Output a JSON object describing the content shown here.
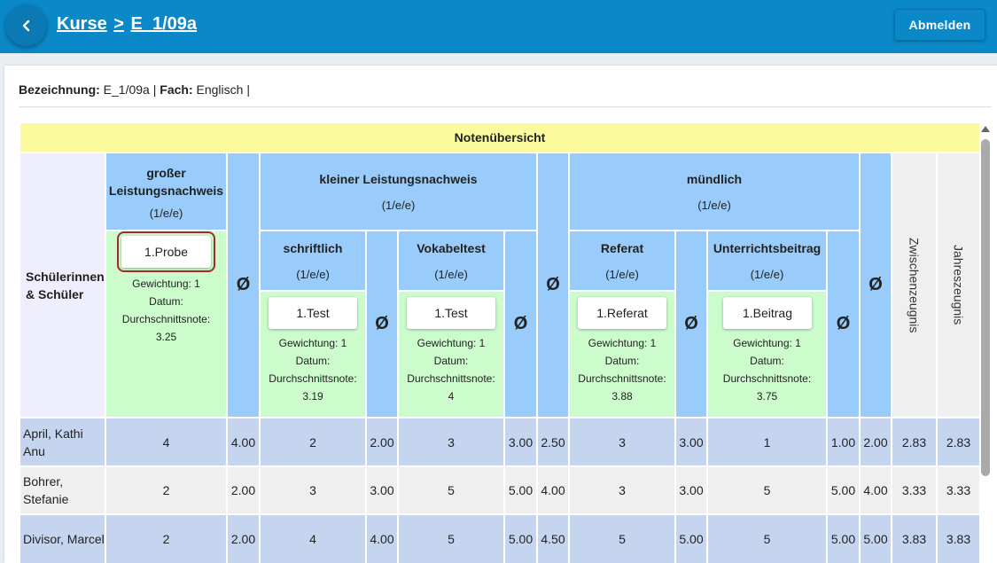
{
  "header": {
    "crumb_root": "Kurse",
    "crumb_sep": ">",
    "crumb_course": "E_1/09a",
    "logout_label": "Abmelden",
    "bg_color": "#0a88c8"
  },
  "info": {
    "bezeichnung_label": "Bezeichnung:",
    "bezeichnung_value": "E_1/09a",
    "fach_label": "Fach:",
    "fach_value": "Englisch"
  },
  "table": {
    "title": "Notenübersicht",
    "students_header": "Schülerinnen & Schüler",
    "avg_symbol": "Ø",
    "weight_pattern": "(1/e/e)",
    "groups": {
      "gross": "großer Leistungsnachweis",
      "klein": "kleiner Leistungsnachweis",
      "muendlich": "mündlich"
    },
    "subgroups": {
      "schriftlich": "schriftlich",
      "vokabeltest": "Vokabeltest",
      "referat": "Referat",
      "unterricht": "Unterrichtsbeitrag"
    },
    "zwischen": "Zwischenzeugnis",
    "jahres": "Jahreszeugnis",
    "exams": {
      "probe": {
        "label": "1.Probe",
        "weight": "Gewichtung: 1",
        "date": "Datum:",
        "avg_label": "Durchschnittsnote:",
        "avg": "3.25"
      },
      "test1": {
        "label": "1.Test",
        "weight": "Gewichtung: 1",
        "date": "Datum:",
        "avg_label": "Durchschnittsnote:",
        "avg": "3.19"
      },
      "test2": {
        "label": "1.Test",
        "weight": "Gewichtung: 1",
        "date": "Datum:",
        "avg_label": "Durchschnittsnote:",
        "avg": "4"
      },
      "referat": {
        "label": "1.Referat",
        "weight": "Gewichtung: 1",
        "date": "Datum:",
        "avg_label": "Durchschnittsnote:",
        "avg": "3.88"
      },
      "beitrag": {
        "label": "1.Beitrag",
        "weight": "Gewichtung: 1",
        "date": "Datum:",
        "avg_label": "Durchschnittsnote:",
        "avg": "3.75"
      }
    },
    "rows": [
      {
        "name": "April, Kathi Anu",
        "probe": "4",
        "avg_gross": "4.00",
        "schrift": "2",
        "avg_schrift": "2.00",
        "vokabel": "3",
        "avg_vokabel": "3.00",
        "avg_klein": "2.50",
        "referat": "3",
        "avg_referat": "3.00",
        "beitrag": "1",
        "avg_beitrag": "1.00",
        "avg_muendlich": "2.00",
        "zwischen": "2.83",
        "jahres": "2.83"
      },
      {
        "name": "Bohrer, Stefanie",
        "probe": "2",
        "avg_gross": "2.00",
        "schrift": "3",
        "avg_schrift": "3.00",
        "vokabel": "5",
        "avg_vokabel": "5.00",
        "avg_klein": "4.00",
        "referat": "3",
        "avg_referat": "3.00",
        "beitrag": "5",
        "avg_beitrag": "5.00",
        "avg_muendlich": "4.00",
        "zwischen": "3.33",
        "jahres": "3.33"
      },
      {
        "name": "Divisor, Marcel",
        "probe": "2",
        "avg_gross": "2.00",
        "schrift": "4",
        "avg_schrift": "4.00",
        "vokabel": "5",
        "avg_vokabel": "5.00",
        "avg_klein": "4.50",
        "referat": "5",
        "avg_referat": "5.00",
        "beitrag": "5",
        "avg_beitrag": "5.00",
        "avg_muendlich": "5.00",
        "zwischen": "3.83",
        "jahres": "3.83"
      }
    ]
  }
}
